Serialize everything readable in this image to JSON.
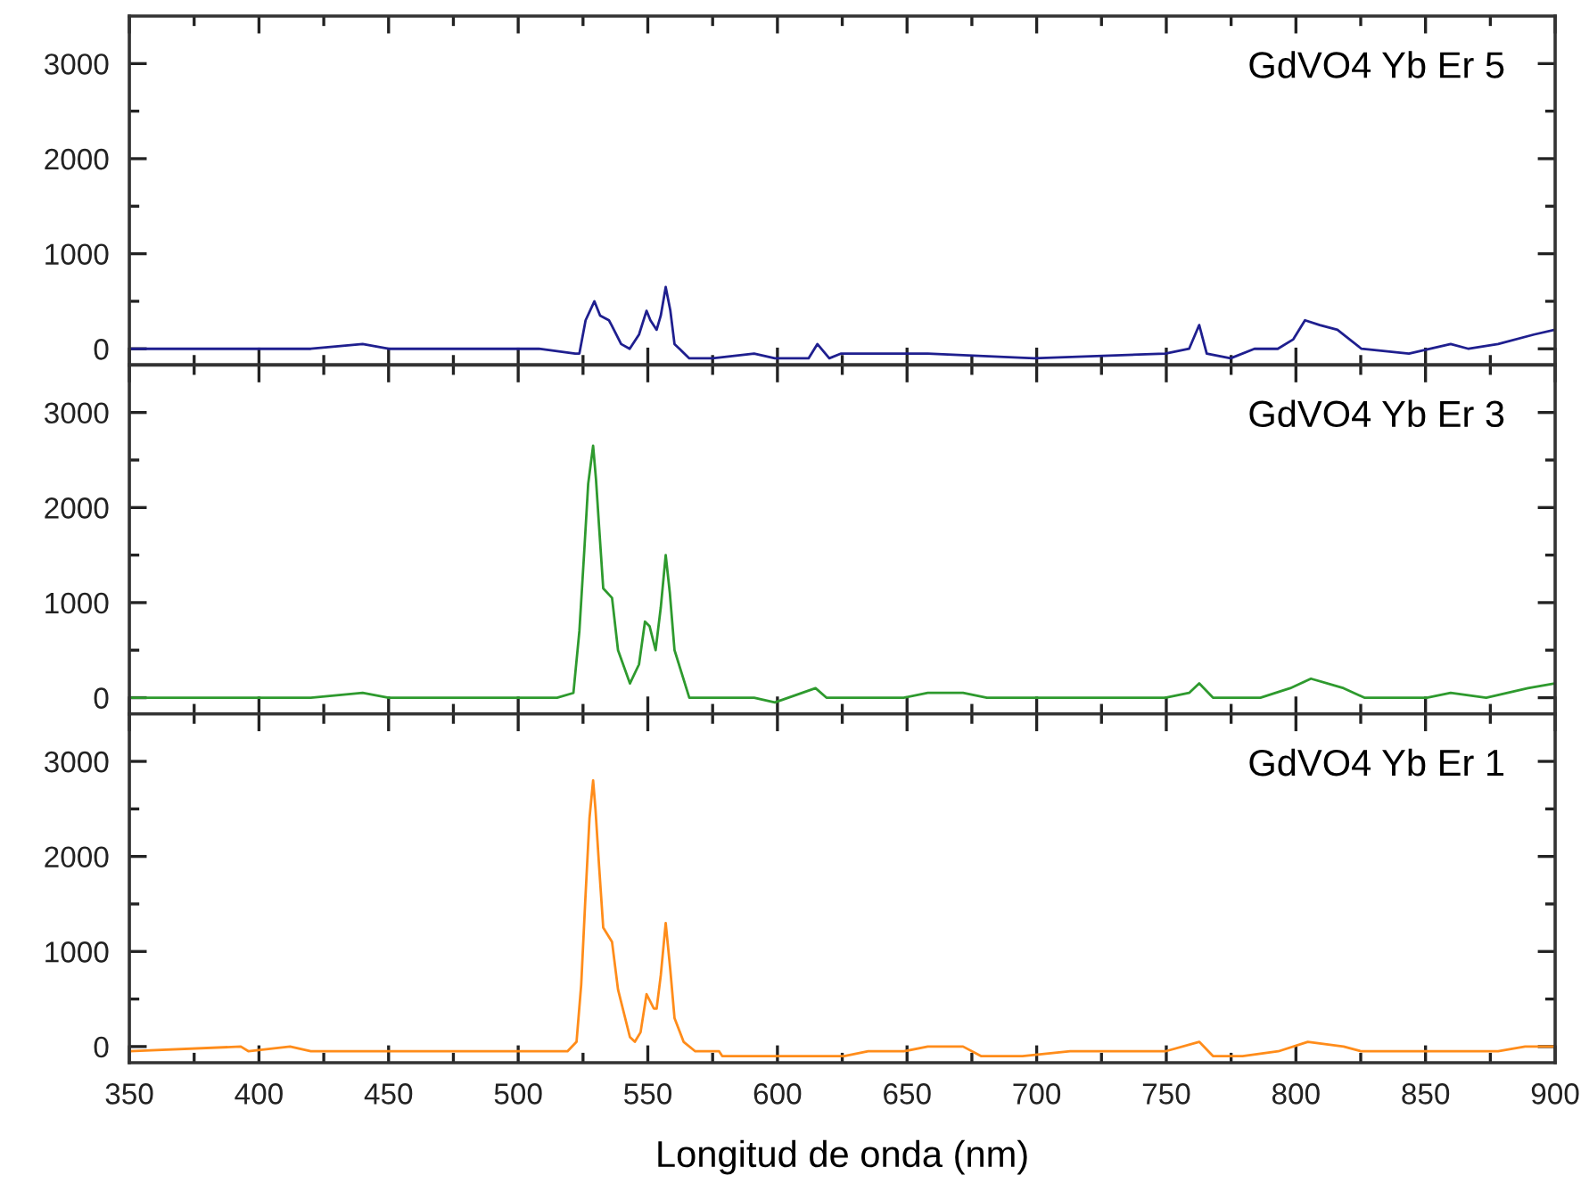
{
  "chart_data": [
    {
      "type": "line",
      "xlim": [
        350,
        900
      ],
      "xticks": [
        350,
        400,
        450,
        500,
        550,
        600,
        650,
        700,
        750,
        800,
        850,
        900
      ],
      "ylim": [
        -170,
        3500
      ],
      "yticks": [
        0,
        1000,
        2000,
        3000
      ],
      "tick_labels": "y",
      "annotations": [
        "GdVO4 Yb Er 5"
      ],
      "series": [
        {
          "color": "#1f1f8f",
          "x": [
            350,
            370,
            390,
            405,
            420,
            440,
            450,
            480,
            508,
            522,
            523.6,
            526,
            529.4,
            531.6,
            535,
            536,
            539.7,
            543,
            546.6,
            549.5,
            551,
            553.4,
            555,
            556.9,
            558.7,
            560.3,
            566,
            575,
            591,
            599,
            612,
            615.4,
            620,
            624.6,
            658,
            699,
            749.6,
            758.8,
            762.7,
            765.6,
            774.8,
            784,
            793,
            799,
            803.5,
            809.2,
            816,
            825.3,
            843.6,
            859.7,
            866.6,
            878,
            891.8,
            899.8
          ],
          "values": [
            0,
            0,
            0,
            0,
            0,
            50,
            0,
            0,
            0,
            -50,
            -50,
            300,
            500,
            350,
            300,
            250,
            50,
            0,
            150,
            400,
            300,
            200,
            350,
            650,
            400,
            50,
            -100,
            -100,
            -50,
            -100,
            -100,
            50,
            -100,
            -50,
            -50,
            -100,
            -50,
            0,
            250,
            -50,
            -100,
            0,
            0,
            100,
            300,
            250,
            200,
            0,
            -50,
            50,
            0,
            50,
            150,
            200
          ]
        }
      ]
    },
    {
      "type": "line",
      "xlim": [
        350,
        900
      ],
      "xticks": [
        350,
        400,
        450,
        500,
        550,
        600,
        650,
        700,
        750,
        800,
        850,
        900
      ],
      "ylim": [
        -170,
        3500
      ],
      "yticks": [
        0,
        1000,
        2000,
        3000
      ],
      "tick_labels": "y",
      "annotations": [
        "GdVO4 Yb Er 3"
      ],
      "series": [
        {
          "color": "#2e9a2e",
          "x": [
            350,
            370,
            400,
            420,
            440,
            450,
            500,
            515,
            521.3,
            523.6,
            525.5,
            527,
            528.9,
            530,
            531.2,
            532.8,
            536.2,
            538.5,
            543.1,
            546.6,
            548.9,
            550.7,
            553,
            555,
            556.9,
            558.5,
            560.3,
            566,
            575,
            591,
            599,
            614.7,
            618.9,
            628,
            648.7,
            658,
            671.6,
            680.8,
            717.5,
            749.6,
            758.8,
            762.7,
            768,
            786.3,
            797.8,
            805.8,
            818.4,
            826.4,
            850.5,
            859.7,
            873.4,
            889.5,
            899.8
          ],
          "values": [
            0,
            0,
            0,
            0,
            50,
            0,
            0,
            0,
            50,
            700,
            1550,
            2250,
            2650,
            2300,
            1800,
            1150,
            1050,
            500,
            150,
            350,
            800,
            750,
            500,
            950,
            1500,
            1100,
            500,
            0,
            0,
            0,
            -50,
            100,
            0,
            0,
            0,
            50,
            50,
            0,
            0,
            0,
            50,
            150,
            0,
            0,
            100,
            200,
            100,
            0,
            0,
            50,
            0,
            100,
            150
          ]
        }
      ]
    },
    {
      "type": "line",
      "xlim": [
        350,
        900
      ],
      "xticks": [
        350,
        400,
        450,
        500,
        550,
        600,
        650,
        700,
        750,
        800,
        850,
        900
      ],
      "ylim": [
        -170,
        3500
      ],
      "yticks": [
        0,
        1000,
        2000,
        3000
      ],
      "xlabel": "Longitud de onda (nm)",
      "annotations": [
        "GdVO4 Yb Er 1"
      ],
      "series": [
        {
          "color": "#ff8c1a",
          "x": [
            350,
            393,
            396,
            412,
            420,
            500,
            519,
            522.5,
            524.3,
            525.9,
            527.5,
            528.9,
            529.8,
            531.2,
            532.8,
            536.2,
            538.5,
            543.1,
            545,
            547.2,
            549.5,
            552.3,
            553.4,
            555,
            556.9,
            558.7,
            560.3,
            563.8,
            568.3,
            577.5,
            578.7,
            599.3,
            625.7,
            635,
            648.7,
            658,
            671.6,
            678.5,
            694.5,
            712.9,
            749.6,
            762.7,
            768,
            779.4,
            793.2,
            804.6,
            818.4,
            825.3,
            850.5,
            878,
            888.4,
            899.8
          ],
          "values": [
            -50,
            0,
            -50,
            0,
            -50,
            -50,
            -50,
            50,
            650,
            1550,
            2400,
            2800,
            2500,
            1900,
            1250,
            1100,
            600,
            100,
            50,
            150,
            550,
            400,
            400,
            750,
            1300,
            800,
            300,
            50,
            -50,
            -50,
            -100,
            -100,
            -100,
            -50,
            -50,
            0,
            0,
            -100,
            -100,
            -50,
            -50,
            50,
            -100,
            -100,
            -50,
            50,
            0,
            -50,
            -50,
            -50,
            0,
            0
          ]
        }
      ]
    }
  ]
}
